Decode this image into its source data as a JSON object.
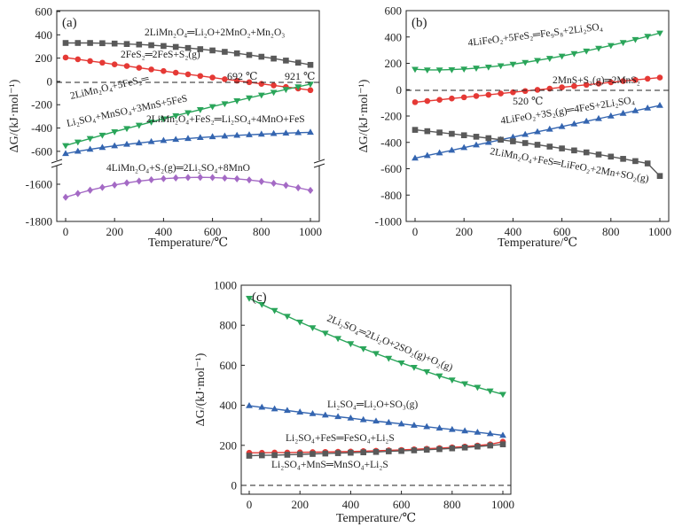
{
  "chart_data": [
    {
      "id": "a",
      "type": "line",
      "panel_label": "(a)",
      "xlabel": "Temperature/℃",
      "ylabel": "ΔG/(kJ·mol⁻¹)",
      "xlim": [
        0,
        1000
      ],
      "x_ticks": [
        "0",
        "200",
        "400",
        "600",
        "800",
        "1000"
      ],
      "y_ticks": [
        "600",
        "400",
        "200",
        "0",
        "-200",
        "-400",
        "-600",
        "-1600",
        "-1800"
      ],
      "broken_axis": true,
      "series": [
        {
          "name": "2LiMn₂O₄═Li₂O+2MnO₂+Mn₂O₃",
          "color": "#595959",
          "marker": "square",
          "x": [
            0,
            50,
            100,
            150,
            200,
            250,
            300,
            350,
            400,
            450,
            500,
            550,
            600,
            650,
            700,
            750,
            800,
            850,
            900,
            950,
            1000
          ],
          "y": [
            330,
            330,
            330,
            328,
            325,
            321,
            317,
            311,
            304,
            296,
            287,
            277,
            266,
            254,
            241,
            227,
            212,
            196,
            179,
            161,
            142
          ]
        },
        {
          "name": "2FeS₂═2FeS+S₂(g)",
          "color": "#e53935",
          "marker": "circle",
          "x": [
            0,
            50,
            100,
            150,
            200,
            250,
            300,
            350,
            400,
            450,
            500,
            550,
            600,
            650,
            700,
            750,
            800,
            850,
            900,
            950,
            1000
          ],
          "y": [
            205,
            190,
            175,
            161,
            146,
            132,
            117,
            103,
            89,
            75,
            61,
            47,
            33,
            19,
            6,
            -7,
            -21,
            -34,
            -48,
            -61,
            -75
          ]
        },
        {
          "name": "2LiMn₂O₄+5FeS₂═Li₂SO₄+MnSO₄+3MnS+5FeS",
          "color": "#2aa55a",
          "marker": "triangle-down",
          "x": [
            0,
            50,
            100,
            150,
            200,
            250,
            300,
            350,
            400,
            450,
            500,
            550,
            600,
            650,
            700,
            750,
            800,
            850,
            900,
            950,
            1000
          ],
          "y": [
            -550,
            -520,
            -490,
            -461,
            -432,
            -404,
            -376,
            -348,
            -321,
            -294,
            -268,
            -242,
            -216,
            -191,
            -166,
            -141,
            -117,
            -93,
            -69,
            -46,
            -23
          ]
        },
        {
          "name": "2LiMn₂O₄+FeS₂═Li₂SO₄+4MnO+FeS",
          "color": "#3465b0",
          "marker": "triangle-up",
          "x": [
            0,
            50,
            100,
            150,
            200,
            250,
            300,
            350,
            400,
            450,
            500,
            550,
            600,
            650,
            700,
            750,
            800,
            850,
            900,
            950,
            1000
          ],
          "y": [
            -620,
            -600,
            -583,
            -567,
            -553,
            -540,
            -528,
            -517,
            -507,
            -498,
            -490,
            -482,
            -475,
            -469,
            -463,
            -458,
            -453,
            -448,
            -444,
            -440,
            -437
          ]
        },
        {
          "name": "4LiMn₂O₄+S₂(g)═2Li₂SO₄+8MnO",
          "color": "#a46ac5",
          "marker": "diamond",
          "x": [
            0,
            50,
            100,
            150,
            200,
            250,
            300,
            350,
            400,
            450,
            500,
            550,
            600,
            650,
            700,
            750,
            800,
            850,
            900,
            950,
            1000
          ],
          "y": [
            -1670,
            -1650,
            -1632,
            -1617,
            -1604,
            -1593,
            -1583,
            -1576,
            -1570,
            -1566,
            -1564,
            -1563,
            -1564,
            -1567,
            -1571,
            -1577,
            -1585,
            -1595,
            -1606,
            -1619,
            -1633
          ]
        }
      ],
      "annotations": [
        "692 ℃",
        "921 ℃"
      ],
      "labels": {
        "r1": "2LiMn₂O₄═Li₂O+2MnO₂+Mn₂O₃",
        "r2": "2FeS₂═2FeS+S₂(g)",
        "r3a": "2LiMn₂O₄+5FeS₂═",
        "r3b": "Li₂SO₄+MnSO₄+3MnS+5FeS",
        "r4": "2LiMn₂O₄+FeS₂═Li₂SO₄+4MnO+FeS",
        "r5": "4LiMn₂O₄+S₂(g)═2Li₂SO₄+8MnO"
      }
    },
    {
      "id": "b",
      "type": "line",
      "panel_label": "(b)",
      "xlabel": "Temperature/℃",
      "ylabel": "ΔG/(kJ·mol⁻¹)",
      "xlim": [
        0,
        1000
      ],
      "ylim": [
        -1000,
        600
      ],
      "x_ticks": [
        "0",
        "200",
        "400",
        "600",
        "800",
        "1000"
      ],
      "y_ticks": [
        "600",
        "400",
        "200",
        "0",
        "-200",
        "-400",
        "-600",
        "-800",
        "-1000"
      ],
      "series": [
        {
          "name": "4LiFeO₂+5FeS₂═Fe₉S₈+2Li₂SO₄",
          "color": "#2aa55a",
          "marker": "triangle-down",
          "x": [
            0,
            50,
            100,
            150,
            200,
            250,
            300,
            350,
            400,
            450,
            500,
            550,
            600,
            650,
            700,
            750,
            800,
            850,
            900,
            950,
            1000
          ],
          "y": [
            155,
            150,
            150,
            152,
            157,
            164,
            172,
            182,
            194,
            207,
            222,
            238,
            255,
            274,
            294,
            315,
            336,
            358,
            381,
            405,
            430
          ]
        },
        {
          "name": "2MnS+S₂(g)═2MnS₂",
          "color": "#e53935",
          "marker": "circle",
          "x": [
            0,
            50,
            100,
            150,
            200,
            250,
            300,
            350,
            400,
            450,
            500,
            550,
            600,
            650,
            700,
            750,
            800,
            850,
            900,
            950,
            1000
          ],
          "y": [
            -95,
            -86,
            -77,
            -67,
            -58,
            -48,
            -39,
            -29,
            -20,
            -10,
            -1,
            8,
            18,
            27,
            37,
            46,
            56,
            65,
            74,
            83,
            92
          ]
        },
        {
          "name": "4LiFeO₂+3S₂(g)═4FeS+2Li₂SO₄",
          "color": "#3465b0",
          "marker": "triangle-up",
          "x": [
            0,
            50,
            100,
            150,
            200,
            250,
            300,
            350,
            400,
            450,
            500,
            550,
            600,
            650,
            700,
            750,
            800,
            850,
            900,
            950,
            1000
          ],
          "y": [
            -520,
            -500,
            -480,
            -460,
            -440,
            -420,
            -400,
            -380,
            -360,
            -340,
            -320,
            -300,
            -280,
            -260,
            -240,
            -220,
            -200,
            -180,
            -160,
            -140,
            -120
          ]
        },
        {
          "name": "2LiMn₂O₄+FeS═LiFeO₂+2Mn+SO₂(g)",
          "color": "#595959",
          "marker": "square",
          "x": [
            0,
            50,
            100,
            150,
            200,
            250,
            300,
            350,
            400,
            450,
            500,
            550,
            600,
            650,
            700,
            750,
            800,
            850,
            900,
            950,
            1000
          ],
          "y": [
            -305,
            -315,
            -325,
            -335,
            -346,
            -357,
            -368,
            -380,
            -392,
            -405,
            -418,
            -432,
            -446,
            -461,
            -476,
            -492,
            -508,
            -525,
            -542,
            -560,
            -655
          ]
        }
      ],
      "annotations": [
        "520 ℃"
      ],
      "labels": {
        "r1": "4LiFeO₂+5FeS₂═Fe₉S₈+2Li₂SO₄",
        "r2": "2MnS+S₂(g)═2MnS₂",
        "r3": "4LiFeO₂+3S₂(g)═4FeS+2Li₂SO₄",
        "r4": "2LiMn₂O₄+FeS═LiFeO₂+2Mn+SO₂(g)"
      }
    },
    {
      "id": "c",
      "type": "line",
      "panel_label": "(c)",
      "xlabel": "Temperature/℃",
      "ylabel": "ΔG/(kJ·mol⁻¹)",
      "xlim": [
        0,
        1000
      ],
      "ylim": [
        -40,
        1000
      ],
      "x_ticks": [
        "0",
        "200",
        "400",
        "600",
        "800",
        "1000"
      ],
      "y_ticks": [
        "1000",
        "800",
        "600",
        "400",
        "200",
        "0"
      ],
      "series": [
        {
          "name": "2Li₂SO₄═2Li₂O+2SO₂(g)+O₂(g)",
          "color": "#2aa55a",
          "marker": "triangle-down",
          "x": [
            0,
            50,
            100,
            150,
            200,
            250,
            300,
            350,
            400,
            450,
            500,
            550,
            600,
            650,
            700,
            750,
            800,
            850,
            900,
            950,
            1000
          ],
          "y": [
            935,
            904,
            874,
            845,
            816,
            788,
            761,
            734,
            708,
            683,
            659,
            635,
            612,
            590,
            568,
            547,
            527,
            508,
            490,
            472,
            455
          ]
        },
        {
          "name": "Li₂SO₄═Li₂O+SO₃(g)",
          "color": "#3465b0",
          "marker": "triangle-up",
          "x": [
            0,
            50,
            100,
            150,
            200,
            250,
            300,
            350,
            400,
            450,
            500,
            550,
            600,
            650,
            700,
            750,
            800,
            850,
            900,
            950,
            1000
          ],
          "y": [
            398,
            390,
            382,
            374,
            366,
            358,
            351,
            343,
            336,
            328,
            321,
            314,
            307,
            300,
            293,
            286,
            279,
            272,
            265,
            258,
            250
          ]
        },
        {
          "name": "Li₂SO₄+FeS═FeSO₄+Li₂S",
          "color": "#e53935",
          "marker": "circle",
          "x": [
            0,
            50,
            100,
            150,
            200,
            250,
            300,
            350,
            400,
            450,
            500,
            550,
            600,
            650,
            700,
            750,
            800,
            850,
            900,
            950,
            1000
          ],
          "y": [
            163,
            163,
            164,
            164,
            165,
            166,
            167,
            168,
            169,
            171,
            173,
            175,
            177,
            180,
            183,
            186,
            190,
            194,
            199,
            205,
            218
          ]
        },
        {
          "name": "Li₂SO₄+MnS═MnSO₄+Li₂S",
          "color": "#595959",
          "marker": "square",
          "x": [
            0,
            50,
            100,
            150,
            200,
            250,
            300,
            350,
            400,
            450,
            500,
            550,
            600,
            650,
            700,
            750,
            800,
            850,
            900,
            950,
            1000
          ],
          "y": [
            148,
            150,
            151,
            153,
            155,
            157,
            159,
            161,
            163,
            165,
            167,
            170,
            172,
            175,
            178,
            181,
            185,
            189,
            194,
            199,
            205
          ]
        }
      ],
      "labels": {
        "r1": "2Li₂SO₄═2Li₂O+2SO₂(g)+O₂(g)",
        "r2": "Li₂SO₄═Li₂O+SO₃(g)",
        "r3": "Li₂SO₄+FeS═FeSO₄+Li₂S",
        "r4": "Li₂SO₄+MnS═MnSO₄+Li₂S"
      }
    }
  ]
}
